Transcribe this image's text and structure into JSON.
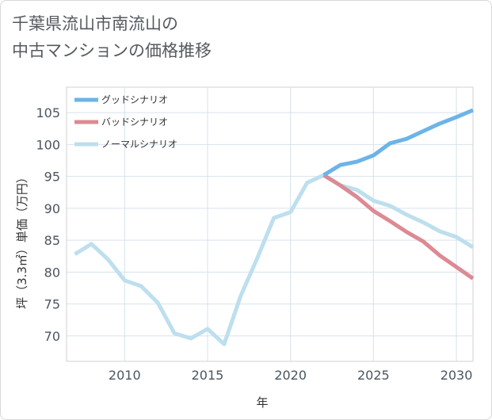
{
  "title_lines": [
    "千葉県流山市南流山の",
    "中古マンションの価格推移"
  ],
  "chart_data": {
    "type": "line",
    "xlabel": "年",
    "ylabel": "坪（3.3㎡）単価（万円）",
    "xlim": [
      2006.5,
      2031
    ],
    "ylim": [
      66,
      109
    ],
    "x_ticks": [
      2010,
      2015,
      2020,
      2025,
      2030
    ],
    "y_ticks": [
      70,
      75,
      80,
      85,
      90,
      95,
      100,
      105
    ],
    "grid": true,
    "legend_position": "top-left",
    "series": [
      {
        "name": "グッドシナリオ",
        "color": "#6cb4e8",
        "x": [
          2022,
          2023,
          2024,
          2025,
          2026,
          2027,
          2028,
          2029,
          2030,
          2031
        ],
        "values": [
          95.2,
          96.8,
          97.3,
          98.3,
          100.2,
          100.9,
          102.1,
          103.3,
          104.3,
          105.4
        ]
      },
      {
        "name": "バッドシナリオ",
        "color": "#dc8a93",
        "x": [
          2022,
          2023,
          2024,
          2025,
          2026,
          2027,
          2028,
          2029,
          2030,
          2031
        ],
        "values": [
          95.2,
          93.6,
          91.8,
          89.6,
          88.0,
          86.3,
          84.8,
          82.6,
          80.8,
          79.0
        ]
      },
      {
        "name": "ノーマルシナリオ",
        "color": "#bddfee",
        "x": [
          2007,
          2008,
          2009,
          2010,
          2011,
          2012,
          2013,
          2014,
          2015,
          2016,
          2017,
          2018,
          2019,
          2020,
          2021,
          2022,
          2023,
          2024,
          2025,
          2026,
          2027,
          2028,
          2029,
          2030,
          2031
        ],
        "values": [
          82.8,
          84.4,
          82.0,
          78.7,
          77.8,
          75.2,
          70.4,
          69.6,
          71.1,
          68.7,
          76.3,
          82.2,
          88.5,
          89.4,
          94.0,
          95.2,
          93.6,
          92.9,
          91.2,
          90.4,
          89.0,
          87.8,
          86.4,
          85.5,
          83.9
        ]
      }
    ]
  }
}
